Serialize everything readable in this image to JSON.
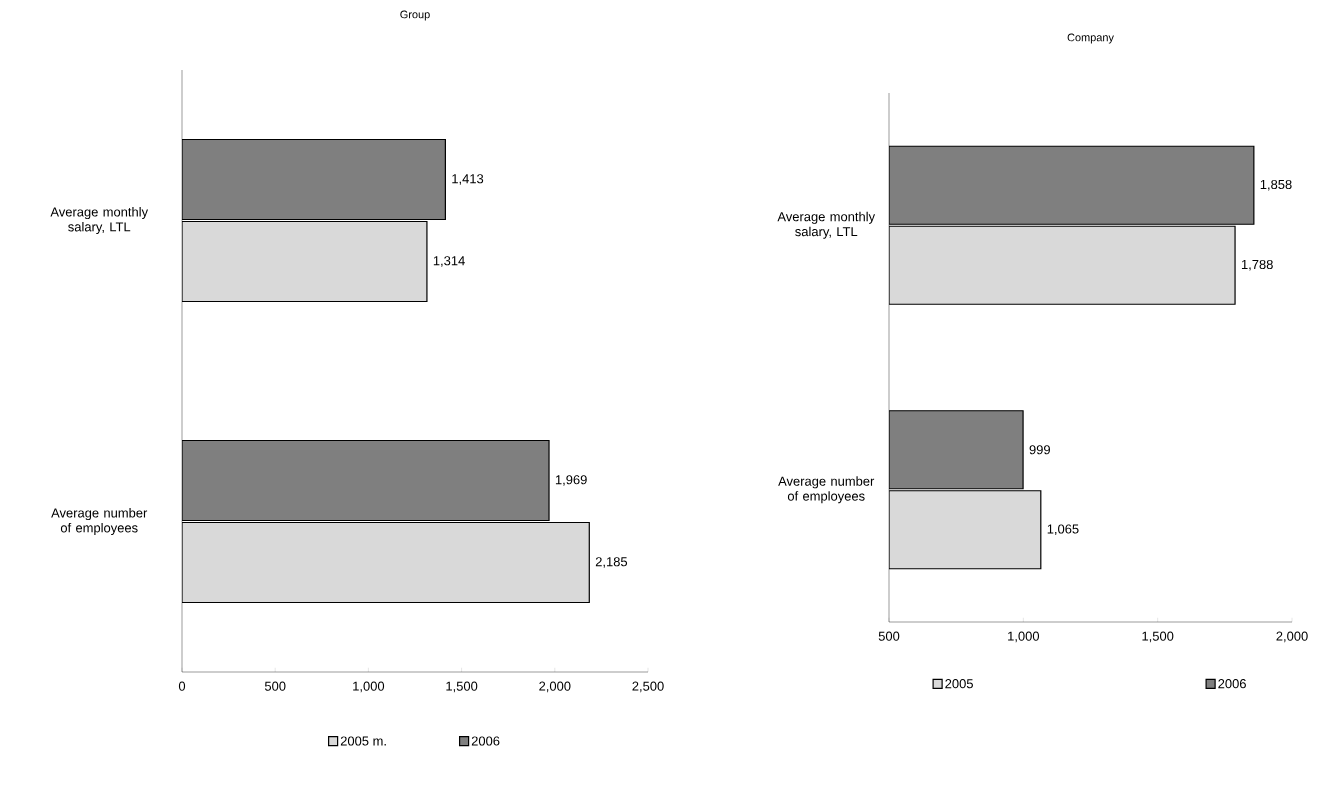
{
  "chart_data": [
    {
      "type": "bar",
      "orientation": "horizontal",
      "title": "Group",
      "categories": [
        "Average monthly salary, LTL",
        "Average number of employees"
      ],
      "series": [
        {
          "name": "2005 m.",
          "color": "#d9d9d9",
          "values": [
            1314,
            2185
          ],
          "value_labels": [
            "1,314",
            "2,185"
          ]
        },
        {
          "name": "2006",
          "color": "#7f7f7f",
          "values": [
            1413,
            1969
          ],
          "value_labels": [
            "1,413",
            "1,969"
          ]
        }
      ],
      "xlim": [
        0,
        2500
      ],
      "xticks": [
        0,
        500,
        {
          "value": 1000,
          "label": "1,000"
        },
        {
          "value": 1500,
          "label": "1,500"
        },
        {
          "value": 2000,
          "label": "2,000"
        },
        {
          "value": 2500,
          "label": "2,500"
        }
      ],
      "legend": "bottom",
      "grid": false
    },
    {
      "type": "bar",
      "orientation": "horizontal",
      "title": "Company",
      "categories": [
        "Average monthly salary, LTL",
        "Average number of employees"
      ],
      "series": [
        {
          "name": "2005",
          "color": "#d9d9d9",
          "values": [
            1788,
            1065
          ],
          "value_labels": [
            "1,788",
            "1,065"
          ]
        },
        {
          "name": "2006",
          "color": "#7f7f7f",
          "values": [
            1858,
            999
          ],
          "value_labels": [
            "1,858",
            "999"
          ]
        }
      ],
      "xlim": [
        500,
        2000
      ],
      "xticks": [
        500,
        {
          "value": 1000,
          "label": "1,000"
        },
        {
          "value": 1500,
          "label": "1,500"
        },
        {
          "value": 2000,
          "label": "2,000"
        }
      ],
      "legend": "bottom",
      "grid": false
    }
  ]
}
